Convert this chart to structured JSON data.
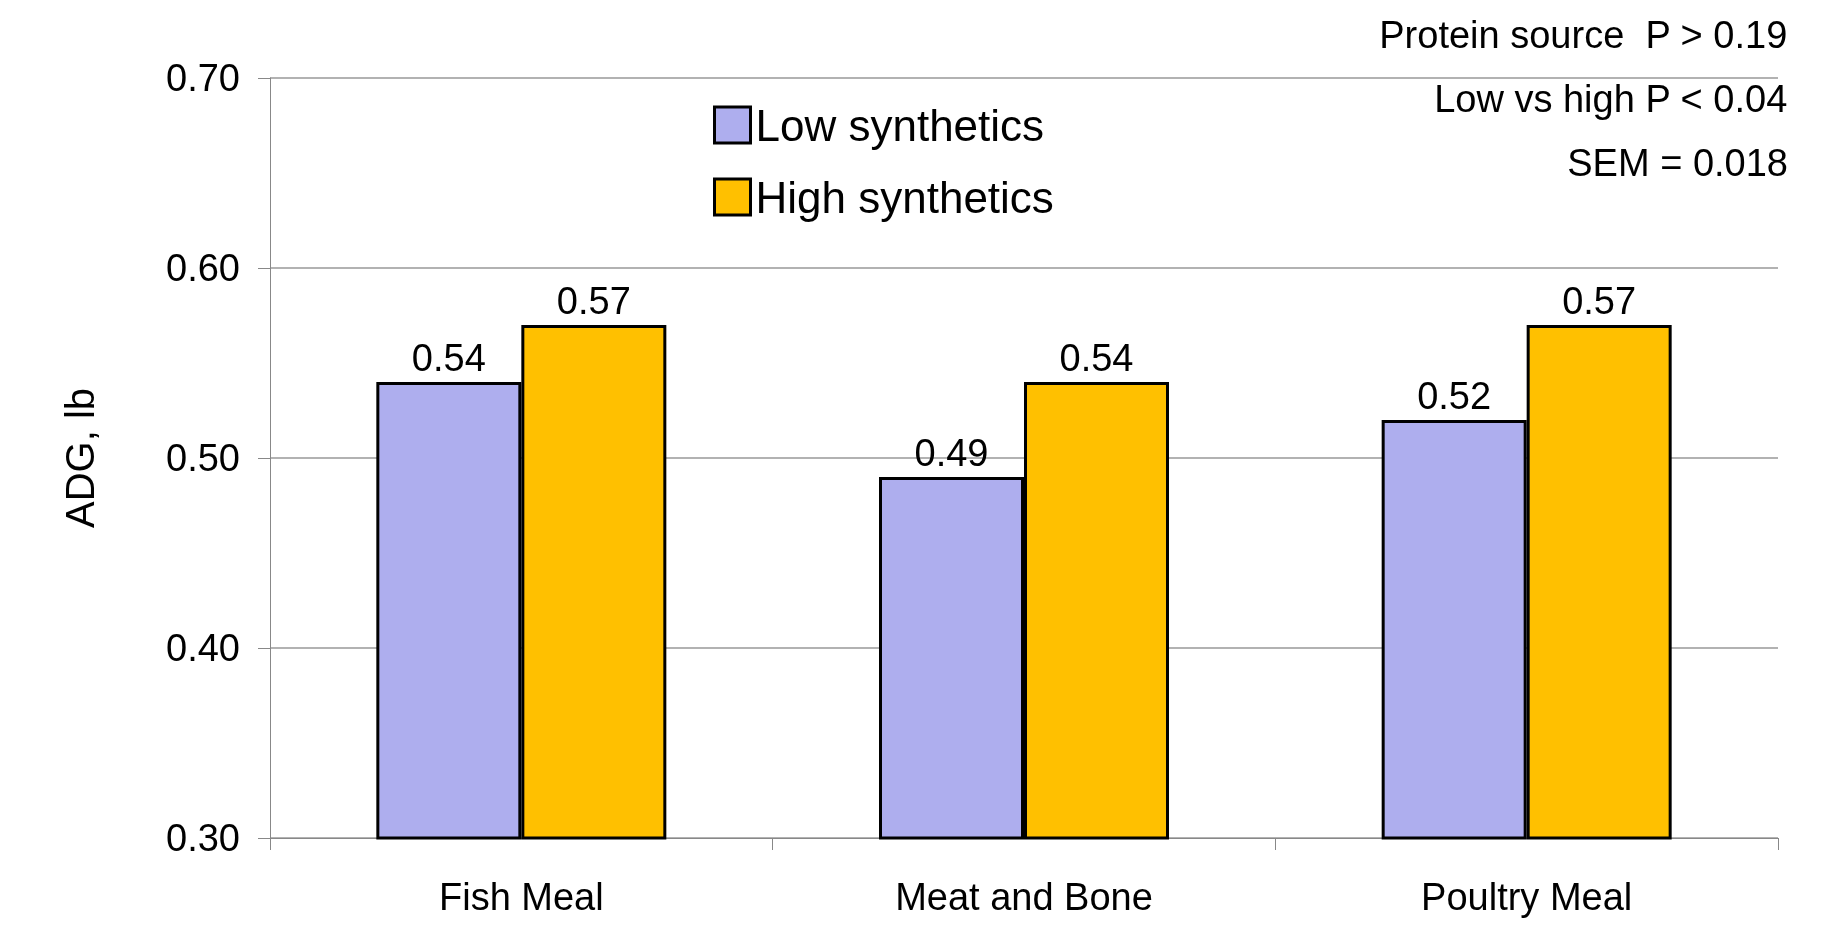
{
  "chart_data": {
    "type": "bar",
    "ylabel": "ADG, lb",
    "categories": [
      "Fish Meal",
      "Meat and Bone",
      "Poultry Meal"
    ],
    "series": [
      {
        "name": "Low synthetics",
        "color": "#aeaeee",
        "values": [
          0.54,
          0.49,
          0.52
        ]
      },
      {
        "name": "High synthetics",
        "color": "#ffc000",
        "values": [
          0.57,
          0.54,
          0.57
        ]
      }
    ],
    "ylim": [
      0.3,
      0.7
    ],
    "yticks": [
      {
        "value": 0.3,
        "label": "0.30"
      },
      {
        "value": 0.4,
        "label": "0.40"
      },
      {
        "value": 0.5,
        "label": "0.50"
      },
      {
        "value": 0.6,
        "label": "0.60"
      },
      {
        "value": 0.7,
        "label": "0.70"
      }
    ],
    "grid": "y",
    "legend": "top",
    "data_labels": true,
    "annotations": [
      "Protein source  P > 0.19",
      "Low vs high P < 0.04",
      "SEM = 0.018"
    ]
  }
}
